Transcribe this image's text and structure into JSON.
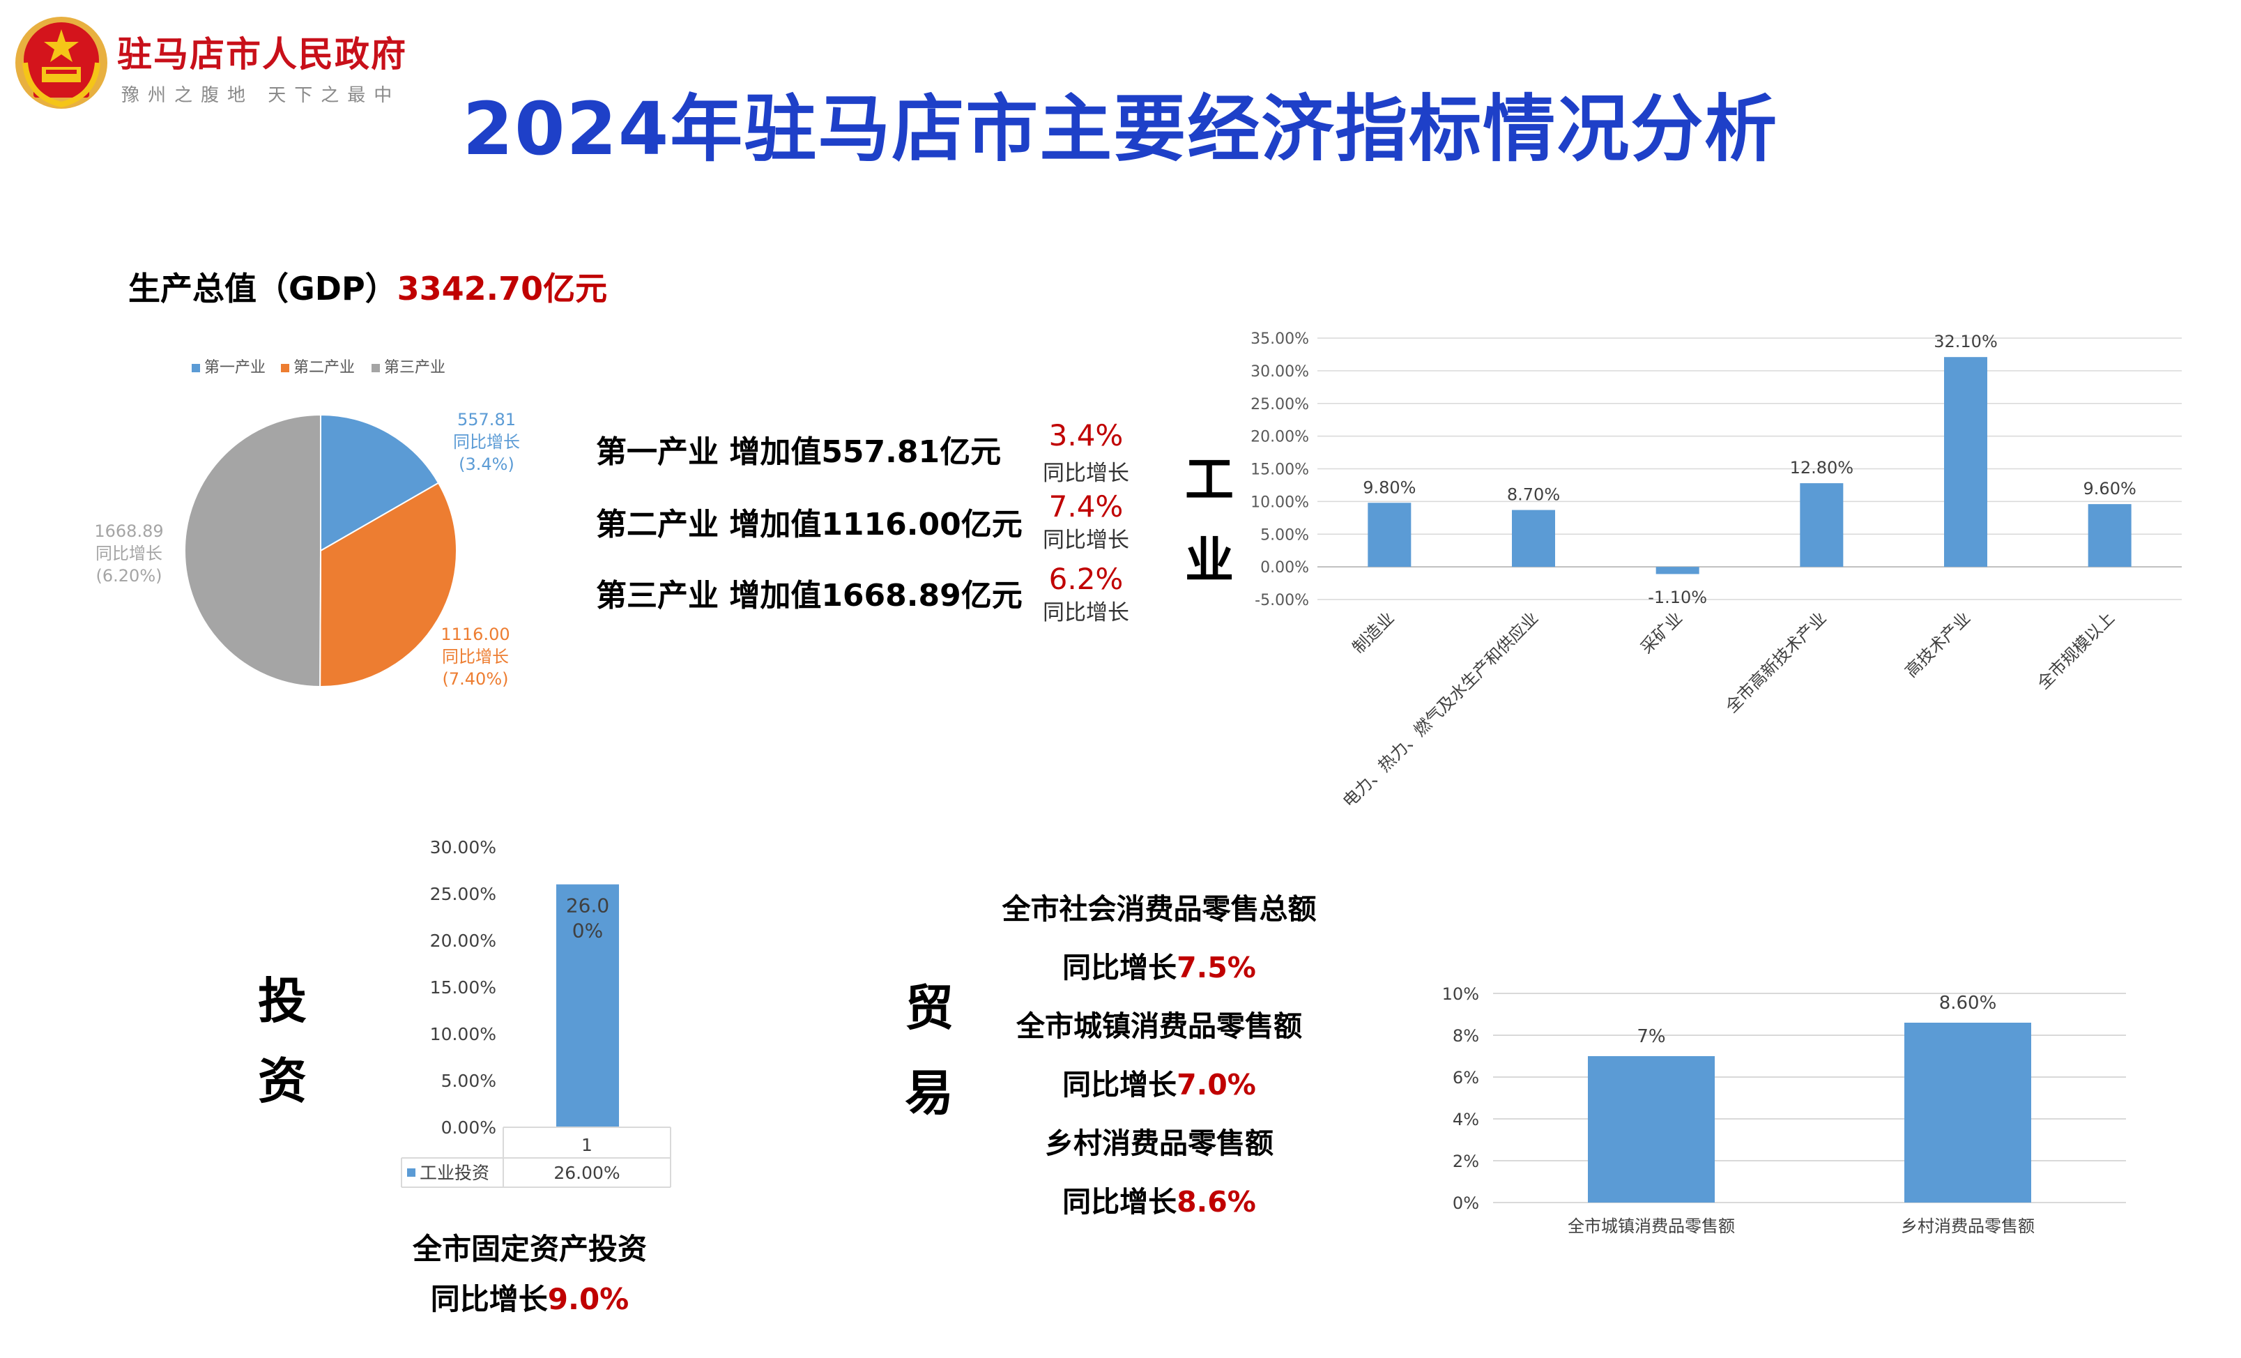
{
  "header": {
    "gov_name": "驻马店市人民政府",
    "motto": "豫州之腹地 天下之最中",
    "title": "2024年驻马店市主要经济指标情况分析"
  },
  "gdp": {
    "label": "生产总值（GDP）",
    "value": "3342.70亿元"
  },
  "industries": [
    {
      "text": "第一产业 增加值557.81亿元",
      "pct": "3.4%",
      "pct_label": "同比增长"
    },
    {
      "text": "第二产业 增加值1116.00亿元",
      "pct": "7.4%",
      "pct_label": "同比增长"
    },
    {
      "text": "第三产业 增加值1668.89亿元",
      "pct": "6.2%",
      "pct_label": "同比增长"
    }
  ],
  "section_labels": {
    "industry_1": "工",
    "industry_2": "业",
    "invest_1": "投",
    "invest_2": "资",
    "trade_1": "贸",
    "trade_2": "易"
  },
  "investment": {
    "line1": "全市固定资产投资",
    "line2_prefix": "同比增长",
    "line2_value": "9.0%"
  },
  "trade": {
    "total_label": "全市社会消费品零售总额",
    "total_growth_prefix": "同比增长",
    "total_growth_value": "7.5%",
    "urban_label": "全市城镇消费品零售额",
    "urban_growth_prefix": "同比增长",
    "urban_growth_value": "7.0%",
    "rural_label": "乡村消费品零售额",
    "rural_growth_prefix": "同比增长",
    "rural_growth_value": "8.6%"
  },
  "colors": {
    "blue": "#5b9bd5",
    "orange": "#ed7d31",
    "gray": "#a5a5a5",
    "red": "#c00000",
    "title_blue": "#1e40c8"
  },
  "chart_data": [
    {
      "type": "pie",
      "legend": [
        "第一产业",
        "第二产业",
        "第三产业"
      ],
      "legend_position": "top",
      "values": [
        557.81,
        1116.0,
        1668.89
      ],
      "data_labels": [
        {
          "value": "557.81",
          "label": "同比增长",
          "pct": "(3.4%)"
        },
        {
          "value": "1116.00",
          "label": "同比增长",
          "pct": "(7.40%)"
        },
        {
          "value": "1668.89",
          "label": "同比增长",
          "pct": "(6.20%)"
        }
      ]
    },
    {
      "type": "bar",
      "categories": [
        "制造业",
        "电力、热力、燃气及水生产和供应业",
        "采矿业",
        "全市高新技术产业",
        "高技术产业",
        "全市规模以上"
      ],
      "values": [
        9.8,
        8.7,
        -1.1,
        12.8,
        32.1,
        9.6
      ],
      "value_labels": [
        "9.80%",
        "8.70%",
        "-1.10%",
        "12.80%",
        "32.10%",
        "9.60%"
      ],
      "ylim": [
        -5,
        35
      ],
      "yticks": [
        "-5.00%",
        "0.00%",
        "5.00%",
        "10.00%",
        "15.00%",
        "20.00%",
        "25.00%",
        "30.00%",
        "35.00%"
      ],
      "grid": true
    },
    {
      "type": "bar",
      "categories": [
        "1"
      ],
      "series": [
        {
          "name": "工业投资",
          "values": [
            26.0
          ]
        }
      ],
      "value_label": "26.00%",
      "table_value": "26.00%",
      "ylim": [
        0,
        30
      ],
      "yticks": [
        "0.00%",
        "5.00%",
        "10.00%",
        "15.00%",
        "20.00%",
        "25.00%",
        "30.00%"
      ],
      "grid": false
    },
    {
      "type": "bar",
      "categories": [
        "全市城镇消费品零售额",
        "乡村消费品零售额"
      ],
      "values": [
        7.0,
        8.6
      ],
      "value_labels": [
        "7%",
        "8.60%"
      ],
      "ylim": [
        0,
        10
      ],
      "yticks": [
        "0%",
        "2%",
        "4%",
        "6%",
        "8%",
        "10%"
      ],
      "grid": true
    }
  ]
}
